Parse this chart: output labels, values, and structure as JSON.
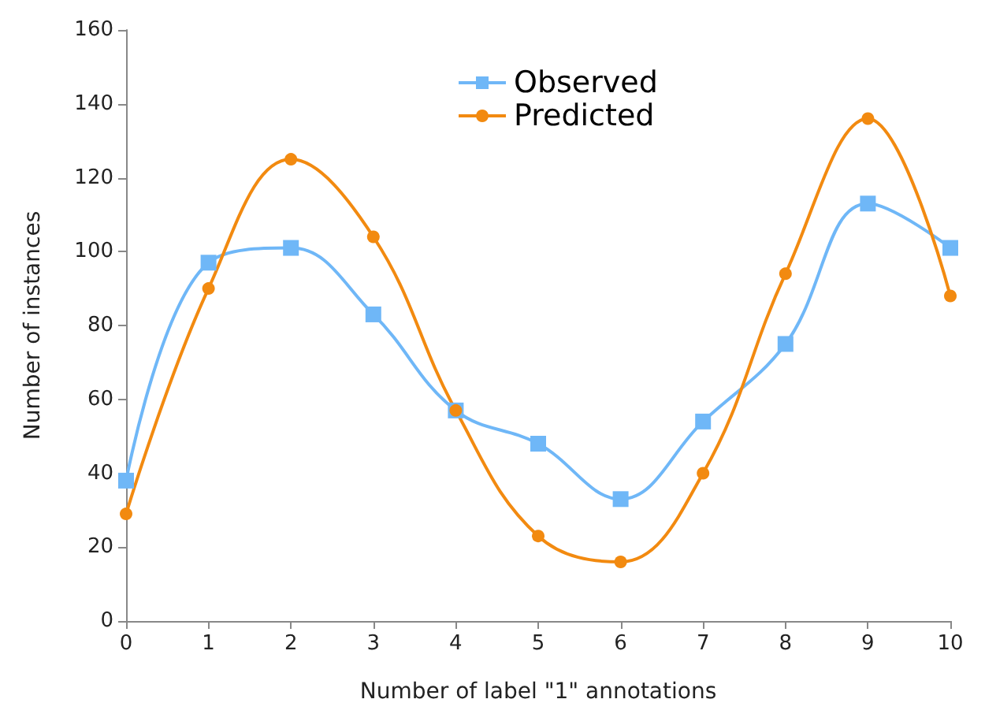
{
  "chart_data": {
    "type": "line",
    "xlabel": "Number of label \"1\" annotations",
    "ylabel": "Number of instances",
    "x": [
      0,
      1,
      2,
      3,
      4,
      5,
      6,
      7,
      8,
      9,
      10
    ],
    "series": [
      {
        "name": "Observed",
        "color": "#6fb7f7",
        "marker": "square",
        "values": [
          38,
          97,
          101,
          83,
          57,
          48,
          33,
          54,
          75,
          113,
          101
        ]
      },
      {
        "name": "Predicted",
        "color": "#f28a10",
        "marker": "circle",
        "values": [
          29,
          90,
          125,
          104,
          57,
          23,
          16,
          40,
          94,
          136,
          88
        ]
      }
    ],
    "xlim": [
      0,
      10
    ],
    "xticks": [
      0,
      1,
      2,
      3,
      4,
      5,
      6,
      7,
      8,
      9,
      10
    ],
    "ylim": [
      0,
      160
    ],
    "yticks": [
      0,
      20,
      40,
      60,
      80,
      100,
      120,
      140,
      160
    ],
    "grid": false,
    "legend": "top",
    "line_style": "solid"
  }
}
